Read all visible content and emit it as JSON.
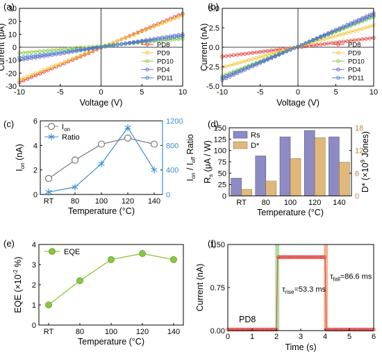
{
  "figure": {
    "panels": [
      "a",
      "b",
      "c",
      "d",
      "e",
      "f"
    ]
  },
  "chart_data": [
    {
      "id": "a",
      "panel_label": "(a)",
      "type": "line",
      "xlabel": "Voltage (V)",
      "ylabel": "Current (pA)",
      "xlim": [
        -10,
        10
      ],
      "ylim": [
        -30,
        30
      ],
      "xticks": [
        -10,
        -5,
        0,
        5,
        10
      ],
      "yticks": [
        -30,
        -20,
        -10,
        0,
        10,
        20,
        30
      ],
      "legend": "bottom-right",
      "series": [
        {
          "name": "PD8",
          "color": "#e0413c",
          "x": [
            -10,
            10
          ],
          "y": [
            -27,
            26
          ]
        },
        {
          "name": "PD9",
          "color": "#f2c43b",
          "x": [
            -10,
            10
          ],
          "y": [
            -25,
            24.5
          ]
        },
        {
          "name": "PD10",
          "color": "#8fc73e",
          "x": [
            -10,
            10
          ],
          "y": [
            -4.5,
            6.5
          ]
        },
        {
          "name": "PD4",
          "color": "#6c63c7",
          "x": [
            -10,
            10
          ],
          "y": [
            -10,
            10
          ]
        },
        {
          "name": "PD11",
          "color": "#3b82c4",
          "x": [
            -10,
            10
          ],
          "y": [
            -8,
            8.5
          ]
        }
      ]
    },
    {
      "id": "b",
      "panel_label": "(b)",
      "type": "line",
      "xlabel": "Voltage (V)",
      "ylabel": "Current (nA)",
      "xlim": [
        -10,
        10
      ],
      "ylim": [
        -5.0,
        5.0
      ],
      "xticks": [
        -10,
        -5,
        0,
        5,
        10
      ],
      "yticks": [
        -5.0,
        -2.5,
        0.0,
        2.5,
        5.0
      ],
      "legend": "bottom-right",
      "series": [
        {
          "name": "PD8",
          "color": "#e0413c",
          "x": [
            -10,
            10
          ],
          "y": [
            -1.2,
            1.2
          ]
        },
        {
          "name": "PD9",
          "color": "#f2c43b",
          "x": [
            -10,
            10
          ],
          "y": [
            -2.6,
            2.8
          ]
        },
        {
          "name": "PD10",
          "color": "#8fc73e",
          "x": [
            -10,
            10
          ],
          "y": [
            -3.7,
            3.9
          ]
        },
        {
          "name": "PD4",
          "color": "#6c63c7",
          "x": [
            -10,
            10
          ],
          "y": [
            -4.2,
            4.4
          ]
        },
        {
          "name": "PD11",
          "color": "#3b82c4",
          "x": [
            -10,
            10
          ],
          "y": [
            -3.9,
            4.1
          ]
        }
      ]
    },
    {
      "id": "c",
      "panel_label": "(c)",
      "type": "line",
      "xlabel": "Temperature (°C)",
      "ylabel": "I_on (nA)",
      "y2label": "I_on / I_off Ratio",
      "categories": [
        "RT",
        "80",
        "100",
        "120",
        "140"
      ],
      "ylim": [
        0,
        6
      ],
      "yticks": [
        0,
        2,
        4,
        6
      ],
      "y2lim": [
        0,
        1200
      ],
      "y2ticks": [
        0,
        400,
        800,
        1200
      ],
      "legend": "top-left",
      "series": [
        {
          "name": "I_on",
          "axis": "left",
          "color": "#777777",
          "values": [
            1.3,
            2.8,
            4.1,
            4.6,
            4.1
          ]
        },
        {
          "name": "Ratio",
          "axis": "right",
          "color": "#3b8ed0",
          "values": [
            40,
            120,
            500,
            1090,
            400
          ]
        }
      ]
    },
    {
      "id": "d",
      "panel_label": "(d)",
      "type": "bar",
      "xlabel": "Temperature (°C)",
      "ylabel": "R_s (μA / W)",
      "y2label": "D* (×10^9 Jones)",
      "categories": [
        "RT",
        "80",
        "100",
        "120",
        "140"
      ],
      "ylim": [
        0,
        150
      ],
      "yticks": [
        0,
        25,
        50,
        75,
        100,
        125,
        150
      ],
      "y2lim": [
        0,
        18
      ],
      "y2ticks": [
        0,
        6,
        12,
        18
      ],
      "legend": "top-left",
      "series": [
        {
          "name": "Rs",
          "axis": "left",
          "color": "#8e8ac4",
          "values": [
            39,
            88,
            130,
            144,
            130
          ]
        },
        {
          "name": "D*",
          "axis": "right",
          "color": "#e0b97a",
          "values": [
            1.7,
            3.9,
            9.9,
            15.4,
            8.9
          ]
        }
      ]
    },
    {
      "id": "e",
      "panel_label": "(e)",
      "type": "line",
      "xlabel": "Temperature (°C)",
      "ylabel": "EQE (×10^-2 %)",
      "categories": [
        "RT",
        "80",
        "100",
        "120",
        "140"
      ],
      "ylim": [
        0,
        4
      ],
      "yticks": [
        0,
        1,
        2,
        3,
        4
      ],
      "legend": "top-left",
      "series": [
        {
          "name": "EQE",
          "color": "#8cc63f",
          "values": [
            1.0,
            2.2,
            3.25,
            3.55,
            3.25
          ]
        }
      ]
    },
    {
      "id": "f",
      "panel_label": "(f)",
      "type": "line",
      "xlabel": "Time (s)",
      "ylabel": "Current (nA)",
      "xlim": [
        0,
        6
      ],
      "xticks": [
        0,
        1,
        2,
        3,
        4,
        5,
        6
      ],
      "ylim": [
        0,
        1.5
      ],
      "yticks": [
        0.0,
        0.75,
        1.5
      ],
      "annotations": [
        "τrise=53.3 ms",
        "τfall=86.6 ms",
        "PD8"
      ],
      "series": [
        {
          "name": "PD8",
          "color": "#e0413c",
          "x": [
            0,
            2.0,
            2.05,
            4.0,
            4.05,
            6
          ],
          "y": [
            0.02,
            0.02,
            1.28,
            1.28,
            0.02,
            0.02
          ]
        }
      ]
    }
  ]
}
